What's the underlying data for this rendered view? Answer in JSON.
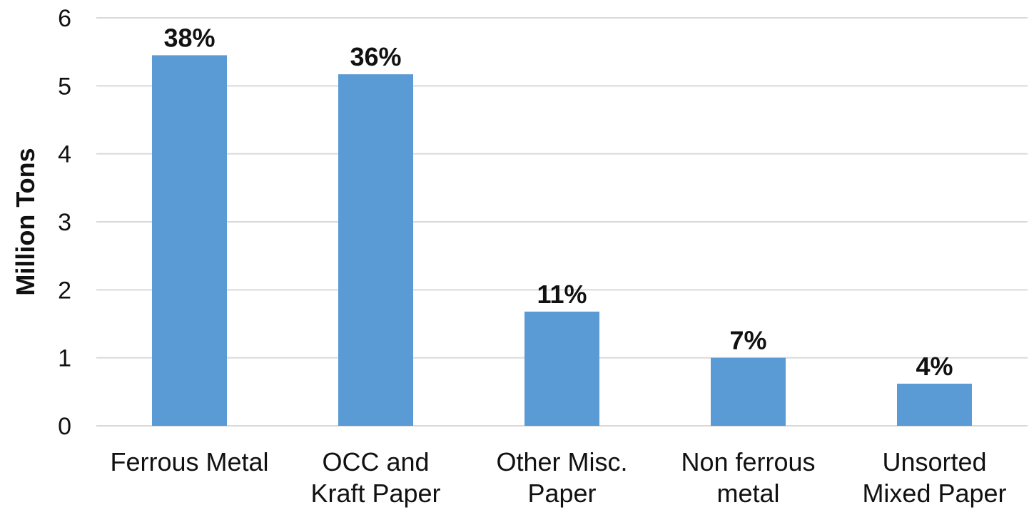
{
  "chart_data": {
    "type": "bar",
    "title": "",
    "xlabel": "",
    "ylabel": "Million Tons",
    "ylim": [
      0,
      6
    ],
    "yticks": [
      0,
      1,
      2,
      3,
      4,
      5,
      6
    ],
    "grid": true,
    "legend": "none",
    "categories": [
      [
        "Ferrous Metal"
      ],
      [
        "OCC and",
        "Kraft Paper"
      ],
      [
        "Other Misc.",
        "Paper"
      ],
      [
        "Non ferrous",
        "metal"
      ],
      [
        "Unsorted",
        "Mixed Paper"
      ]
    ],
    "values": [
      5.45,
      5.17,
      1.68,
      1.0,
      0.62
    ],
    "data_labels": [
      "38%",
      "36%",
      "11%",
      "7%",
      "4%"
    ],
    "bar_color": "#5b9bd5"
  }
}
